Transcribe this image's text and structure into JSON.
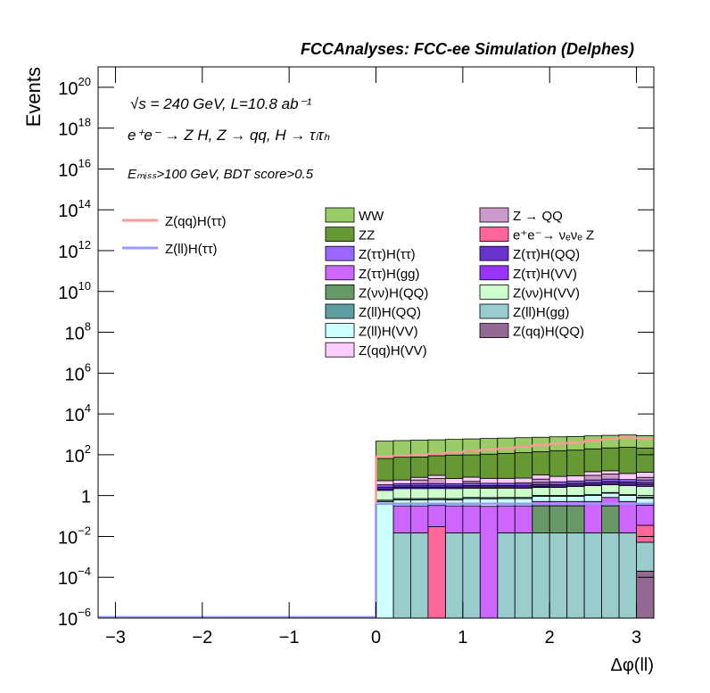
{
  "chart_data": {
    "type": "stacked_histogram",
    "title": "FCCAnalyses: FCC-ee Simulation (Delphes)",
    "annotations": [
      "√s = 240 GeV, L=10.8 ab⁻¹",
      "e⁺e⁻ → Z H, Z → qq, H → τₗτₕ",
      "Eₘᵢₛₛ>100 GeV, BDT score>0.5"
    ],
    "xlabel": "Δφ(ll)",
    "ylabel": "Events",
    "log_y": true,
    "xlim": [
      -3.2,
      3.2
    ],
    "ylim": [
      1e-06,
      1e+21
    ],
    "xticks": [
      {
        "value": -3,
        "label": "−3"
      },
      {
        "value": -2,
        "label": "−2"
      },
      {
        "value": -1,
        "label": "−1"
      },
      0,
      1,
      2,
      3
    ],
    "yticks": [
      {
        "value": 1e-06,
        "label": "10",
        "sup": "−6"
      },
      {
        "value": 0.0001,
        "label": "10",
        "sup": "−4"
      },
      {
        "value": 0.01,
        "label": "10",
        "sup": "−2"
      },
      1,
      {
        "value": 100,
        "label": "10",
        "sup": "2"
      },
      {
        "value": 10000.0,
        "label": "10",
        "sup": "4"
      },
      {
        "value": 1000000.0,
        "label": "10",
        "sup": "6"
      },
      {
        "value": 100000000.0,
        "label": "10",
        "sup": "8"
      },
      {
        "value": 10000000000.0,
        "label": "10",
        "sup": "10"
      },
      {
        "value": 1000000000000.0,
        "label": "10",
        "sup": "12"
      },
      {
        "value": 100000000000000.0,
        "label": "10",
        "sup": "14"
      },
      {
        "value": 1e+16,
        "label": "10",
        "sup": "16"
      },
      {
        "value": 1e+18,
        "label": "10",
        "sup": "18"
      },
      {
        "value": 1e+20,
        "label": "10",
        "sup": "20"
      }
    ],
    "bins": [
      0,
      0.2,
      0.4,
      0.6,
      0.8,
      1.0,
      1.2,
      1.4,
      1.6,
      1.8,
      2.0,
      2.2,
      2.4,
      2.6,
      2.8,
      3.0,
      3.2
    ],
    "series": [
      {
        "name": "Z(qq)H(QQ)",
        "color": "#936993",
        "values": [
          0,
          0,
          0,
          0,
          0,
          0,
          0,
          0,
          0,
          0,
          0,
          0,
          0,
          0,
          0,
          0.0002
        ]
      },
      {
        "name": "Z(ll)H(gg)",
        "color": "#99cccc",
        "values": [
          0,
          0.015,
          0.015,
          0,
          0.015,
          0.015,
          0,
          0.015,
          0.015,
          0.015,
          0.015,
          0.015,
          0.015,
          0.015,
          0.015,
          0.005
        ]
      },
      {
        "name": "Z(νν)H(QQ)",
        "color": "#669966",
        "values": [
          0,
          0,
          0,
          0,
          0,
          0,
          0,
          0,
          0,
          0.3,
          0.3,
          0.3,
          0,
          0.3,
          0,
          0
        ]
      },
      {
        "name": "e⁺e⁻→ νₑνₑ Z",
        "color": "#ff6699",
        "values": [
          0,
          0,
          0,
          0.03,
          0,
          0,
          0,
          0,
          0,
          0,
          0,
          0,
          0,
          0,
          0,
          0.03
        ]
      },
      {
        "name": "Z(ττ)H(gg)",
        "color": "#cc66ff",
        "values": [
          0,
          0.3,
          0.3,
          0.3,
          0.3,
          0.3,
          0.3,
          0.3,
          0.3,
          0.2,
          0.2,
          0.2,
          0.5,
          0.5,
          0.5,
          0.3
        ]
      },
      {
        "name": "Z(ll)H(VV)",
        "color": "#ccffff",
        "values": [
          0.5,
          0.3,
          0.3,
          0.3,
          0.3,
          0.4,
          0.4,
          0.4,
          0.4,
          0.4,
          0.4,
          0.4,
          0.5,
          0.5,
          0.5,
          0.4
        ]
      },
      {
        "name": "Z(ll)H(QQ)",
        "color": "#5f9ea0",
        "values": [
          0.1,
          0.1,
          0.1,
          0.1,
          0.1,
          0.1,
          0.1,
          0.1,
          0.1,
          0.1,
          0.1,
          0.1,
          0.1,
          0.1,
          0.1,
          0.1
        ]
      },
      {
        "name": "Z(νν)H(VV)",
        "color": "#ccffcc",
        "values": [
          1.2,
          1.5,
          1.5,
          1.5,
          1.5,
          1.5,
          1.5,
          1.5,
          1.5,
          1.5,
          1.5,
          1.8,
          2,
          2,
          2,
          2
        ]
      },
      {
        "name": "Z(ττ)H(VV)",
        "color": "#9933ff",
        "values": [
          0.3,
          0.3,
          0.3,
          0.3,
          0.3,
          0.3,
          0.3,
          0.3,
          0.3,
          0.3,
          0.4,
          0.4,
          0.4,
          0.5,
          0.5,
          0.5
        ]
      },
      {
        "name": "Z(ττ)H(QQ)",
        "color": "#6633cc",
        "values": [
          0.5,
          0.5,
          0.5,
          0.5,
          0.5,
          0.5,
          0.5,
          0.5,
          0.6,
          0.6,
          0.6,
          0.8,
          0.8,
          1,
          1,
          1
        ]
      },
      {
        "name": "Z(ττ)H(ττ)",
        "color": "#9966ff",
        "values": [
          0.8,
          0.8,
          0.8,
          0.8,
          0.8,
          0.9,
          0.9,
          0.9,
          1,
          1,
          1.2,
          1.2,
          1.5,
          1.5,
          1.5,
          1.5
        ]
      },
      {
        "name": "Z → QQ",
        "color": "#cc99cc",
        "values": [
          0,
          0,
          2,
          3,
          0,
          1,
          0,
          0,
          0,
          2,
          0,
          0,
          4,
          5,
          0,
          2
        ]
      },
      {
        "name": "Z(qq)H(VV)",
        "color": "#ffccff",
        "values": [
          2,
          2,
          2,
          3,
          3,
          3,
          3,
          3,
          3,
          4,
          4,
          4,
          5,
          5,
          6,
          6
        ]
      },
      {
        "name": "ZZ",
        "color": "#669933",
        "values": [
          60,
          70,
          70,
          80,
          90,
          90,
          100,
          110,
          120,
          130,
          150,
          160,
          180,
          200,
          220,
          200
        ]
      },
      {
        "name": "WW",
        "color": "#99cc66",
        "values": [
          400,
          420,
          440,
          450,
          470,
          500,
          520,
          540,
          560,
          580,
          600,
          620,
          650,
          680,
          700,
          650
        ]
      }
    ],
    "lines": [
      {
        "name": "Z(qq)H(ττ)",
        "color": "#ff9999",
        "values": [
          80,
          90,
          100,
          110,
          130,
          150,
          180,
          200,
          250,
          300,
          350,
          400,
          500,
          600,
          700,
          600
        ]
      },
      {
        "name": "Z(ll)H(ττ)",
        "color": "#9999ff",
        "values": [
          0.4,
          0.4,
          0.4,
          0.4,
          0.4,
          0.4,
          0.4,
          0.4,
          0.4,
          0.4,
          0.4,
          0.4,
          0.4,
          0.4,
          0.4,
          0.4
        ]
      }
    ]
  }
}
